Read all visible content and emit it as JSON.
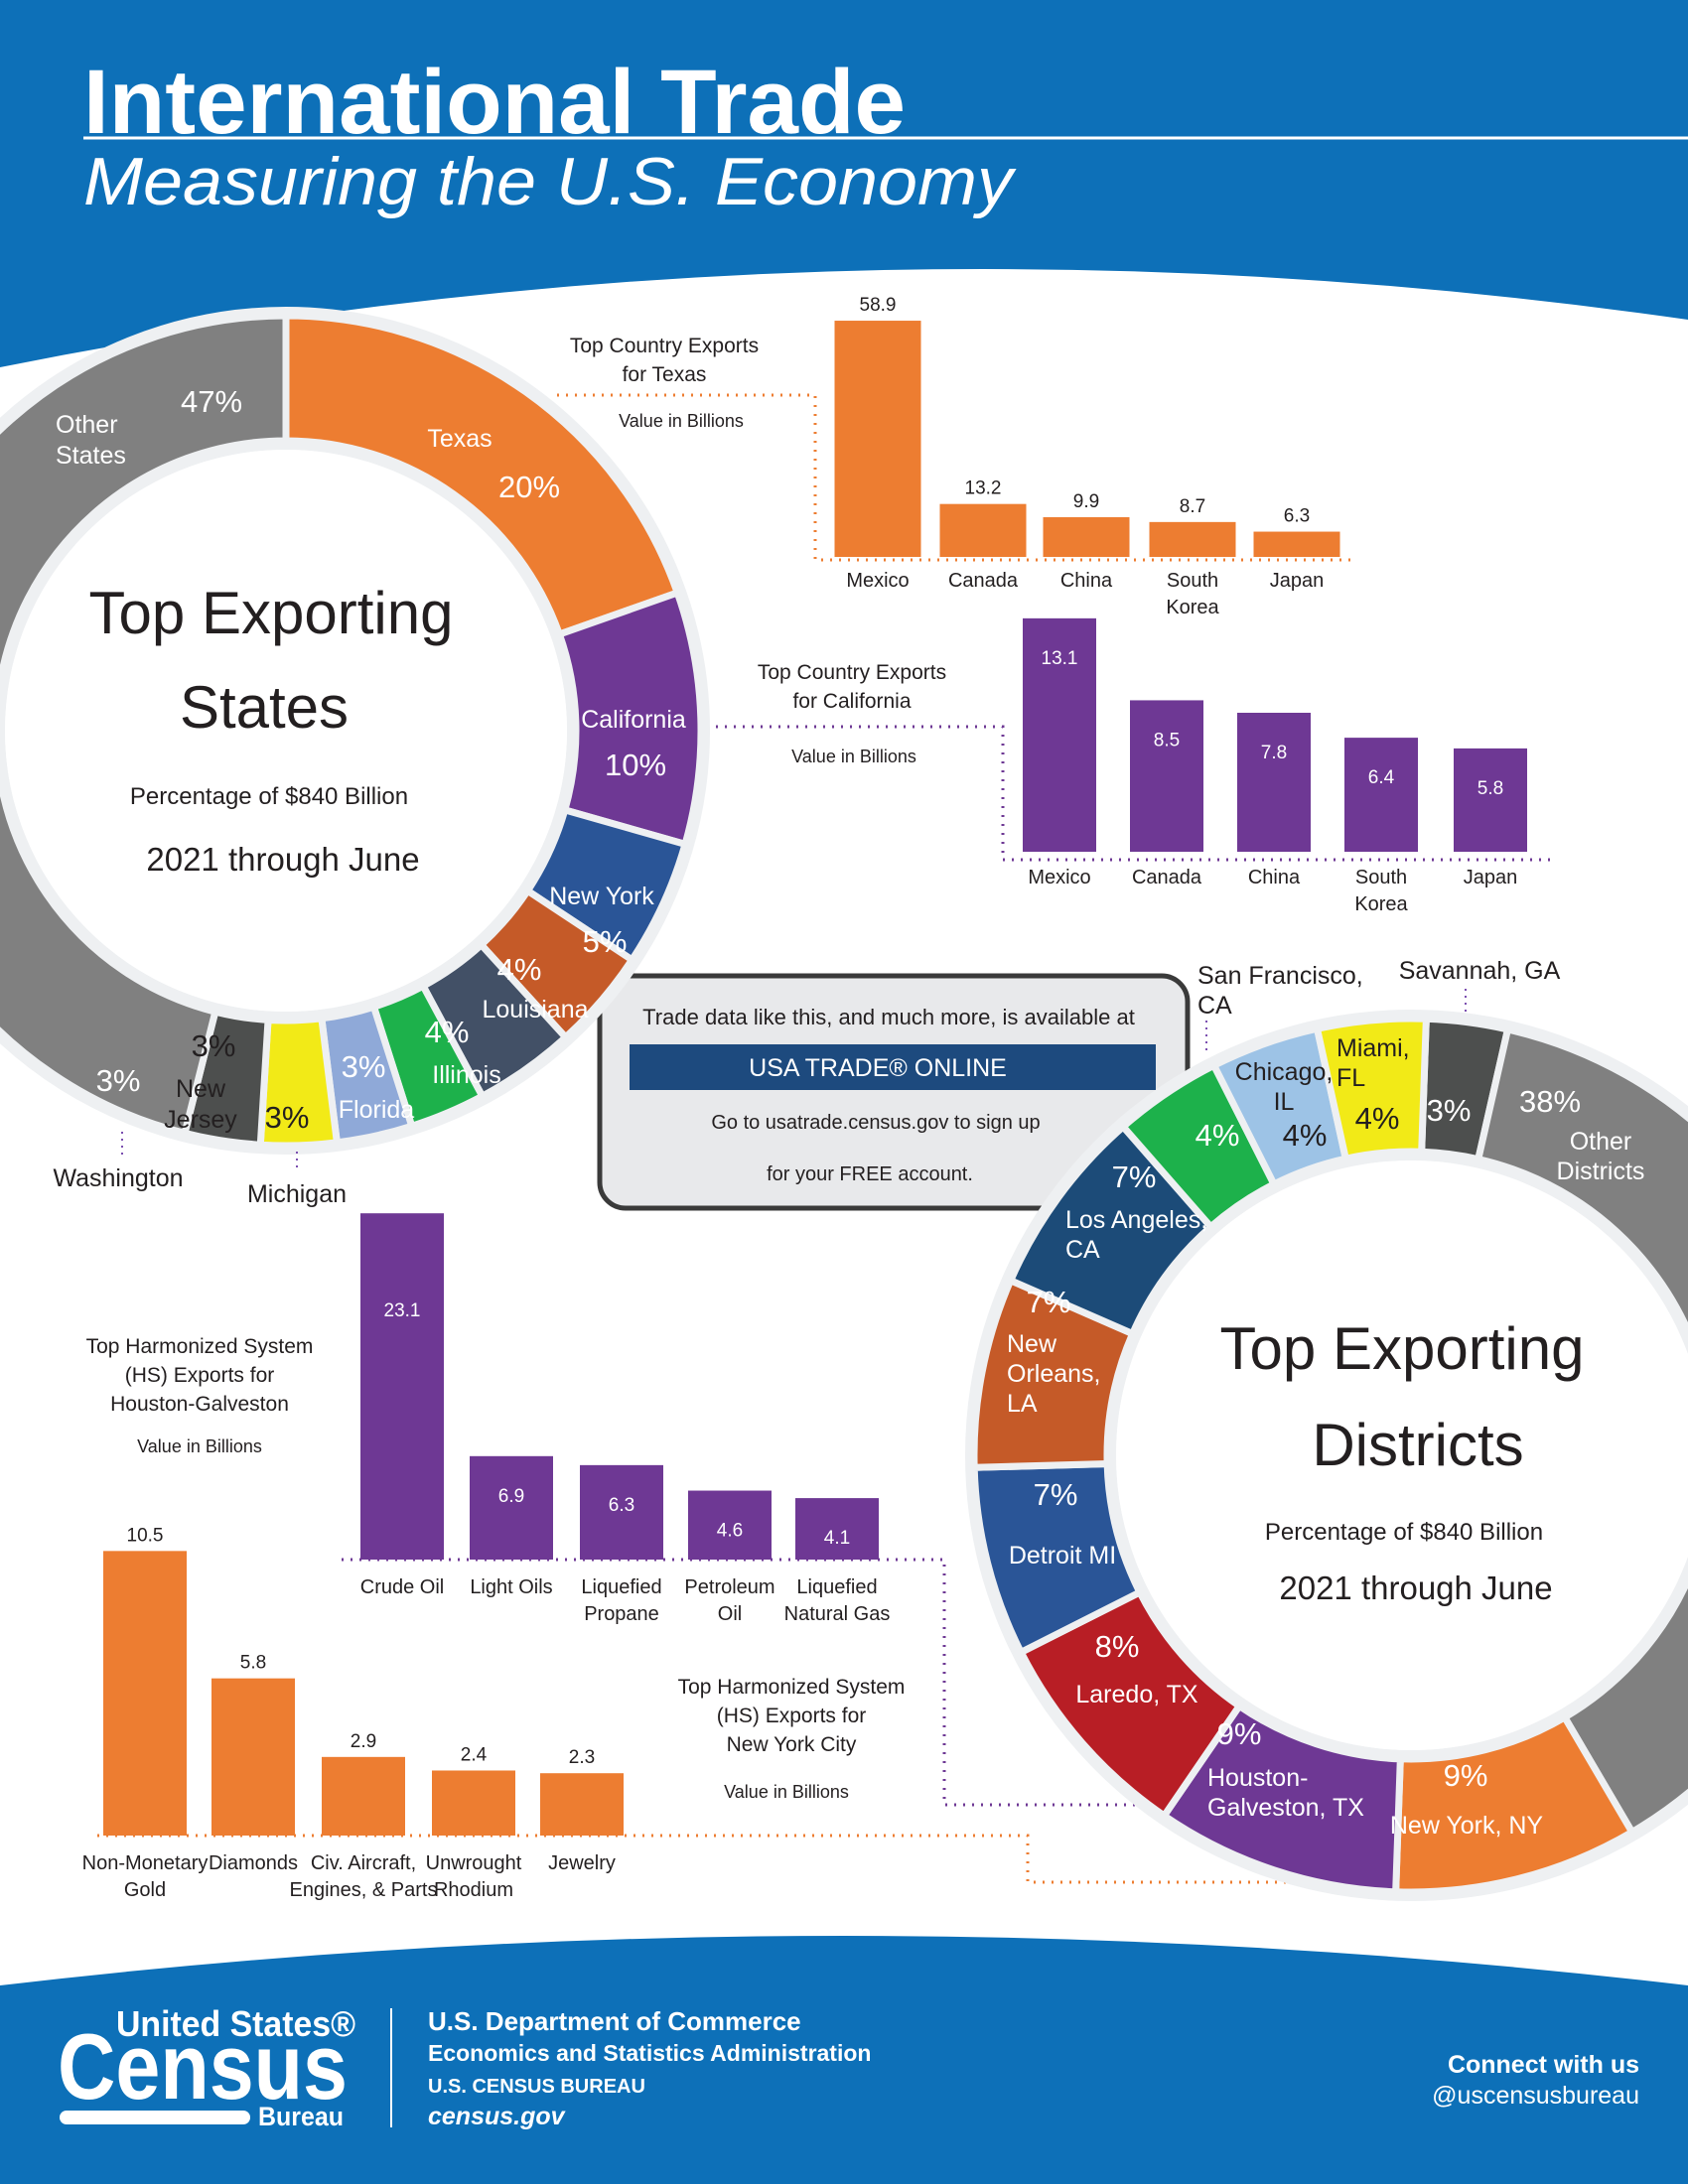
{
  "header": {
    "title": "International Trade",
    "subtitle": "Measuring the U.S. Economy"
  },
  "info_box": {
    "line1": "Trade data like this, and much more, is available at",
    "button": "USA TRADE® ONLINE",
    "line2": "Go to usatrade.census.gov to sign up",
    "line3": "for your FREE account."
  },
  "footer": {
    "logo_top": "United States®",
    "logo_main": "Census",
    "logo_bottom": "Bureau",
    "dept": "U.S. Department of Commerce",
    "admin": "Economics and Statistics Administration",
    "bureau": "U.S. CENSUS BUREAU",
    "site": "census.gov",
    "connect": "Connect with us",
    "handle": "@uscensusbureau"
  },
  "colors": {
    "brand_blue": "#0d70b8",
    "orange": "#ed7d31",
    "purple": "#6e3894"
  },
  "chart_data": [
    {
      "type": "pie",
      "style": "donut",
      "title_lines": [
        "Top Exporting",
        "States"
      ],
      "subtitle": "Percentage of $840 Billion",
      "period": "2021 through June",
      "slices": [
        {
          "label": "Texas",
          "value": 20,
          "color": "#ed7d31"
        },
        {
          "label": "California",
          "value": 10,
          "color": "#6e3894"
        },
        {
          "label": "New York",
          "value": 5,
          "color": "#2a5597"
        },
        {
          "label": "Louisiana",
          "value": 4,
          "color": "#c55a28"
        },
        {
          "label": "Illinois",
          "value": 4,
          "color": "#425066"
        },
        {
          "label": "Florida",
          "value": 3,
          "color": "#1db14b"
        },
        {
          "label": "Michigan",
          "value": 3,
          "color": "#8fa9d8"
        },
        {
          "label": "New\nJersey",
          "value": 3,
          "color": "#f2ea17"
        },
        {
          "label": "Washington",
          "value": 3,
          "color": "#4d4f4e"
        },
        {
          "label": "Other\nStates",
          "value": 47,
          "color": "#808080"
        }
      ]
    },
    {
      "type": "bar",
      "title": "Top Country Exports\nfor Texas",
      "ylabel": "Value in Billions",
      "categories": [
        "Mexico",
        "Canada",
        "China",
        "South\nKorea",
        "Japan"
      ],
      "values": [
        58.9,
        13.2,
        9.9,
        8.7,
        6.3
      ],
      "color": "#ed7d31"
    },
    {
      "type": "bar",
      "title": "Top Country Exports\nfor California",
      "ylabel": "Value in Billions",
      "categories": [
        "Mexico",
        "Canada",
        "China",
        "South\nKorea",
        "Japan"
      ],
      "values": [
        13.1,
        8.5,
        7.8,
        6.4,
        5.8
      ],
      "color": "#6e3894"
    },
    {
      "type": "pie",
      "style": "donut",
      "title_lines": [
        "Top Exporting",
        "Districts"
      ],
      "subtitle": "Percentage of $840 Billion",
      "period": "2021 through June",
      "slices": [
        {
          "label": "Savannah, GA",
          "value": 3,
          "color": "#4d4f4e"
        },
        {
          "label": "Other\nDistricts",
          "value": 38,
          "color": "#808080"
        },
        {
          "label": "New York, NY",
          "value": 9,
          "color": "#ed7d31"
        },
        {
          "label": "Houston-\nGalveston, TX",
          "value": 9,
          "color": "#6e3894"
        },
        {
          "label": "Laredo, TX",
          "value": 8,
          "color": "#b81e25"
        },
        {
          "label": "Detroit MI",
          "value": 7,
          "color": "#2a5597"
        },
        {
          "label": "New\nOrleans,\nLA",
          "value": 7,
          "color": "#c55a28"
        },
        {
          "label": "Los Angeles,\nCA",
          "value": 7,
          "color": "#1c4b78"
        },
        {
          "label": "San Francisco,\nCA",
          "value": 4,
          "color": "#1db14b"
        },
        {
          "label": "Chicago,\nIL",
          "value": 4,
          "color": "#9dc3e6"
        },
        {
          "label": "Miami,\nFL",
          "value": 4,
          "color": "#f2ea17"
        }
      ]
    },
    {
      "type": "bar",
      "title": "Top Harmonized System\n(HS) Exports for\nHouston-Galveston",
      "ylabel": "Value in Billions",
      "categories": [
        "Crude Oil",
        "Light Oils",
        "Liquefied\nPropane",
        "Petroleum\nOil",
        "Liquefied\nNatural Gas"
      ],
      "values": [
        23.1,
        6.9,
        6.3,
        4.6,
        4.1
      ],
      "color": "#6e3894"
    },
    {
      "type": "bar",
      "title": "Top Harmonized System\n(HS) Exports for\nNew York City",
      "ylabel": "Value in Billions",
      "categories": [
        "Non-Monetary\nGold",
        "Diamonds",
        "Civ. Aircraft,\nEngines, & Parts",
        "Unwrought\nRhodium",
        "Jewelry"
      ],
      "values": [
        10.5,
        5.8,
        2.9,
        2.4,
        2.3
      ],
      "color": "#ed7d31"
    }
  ]
}
